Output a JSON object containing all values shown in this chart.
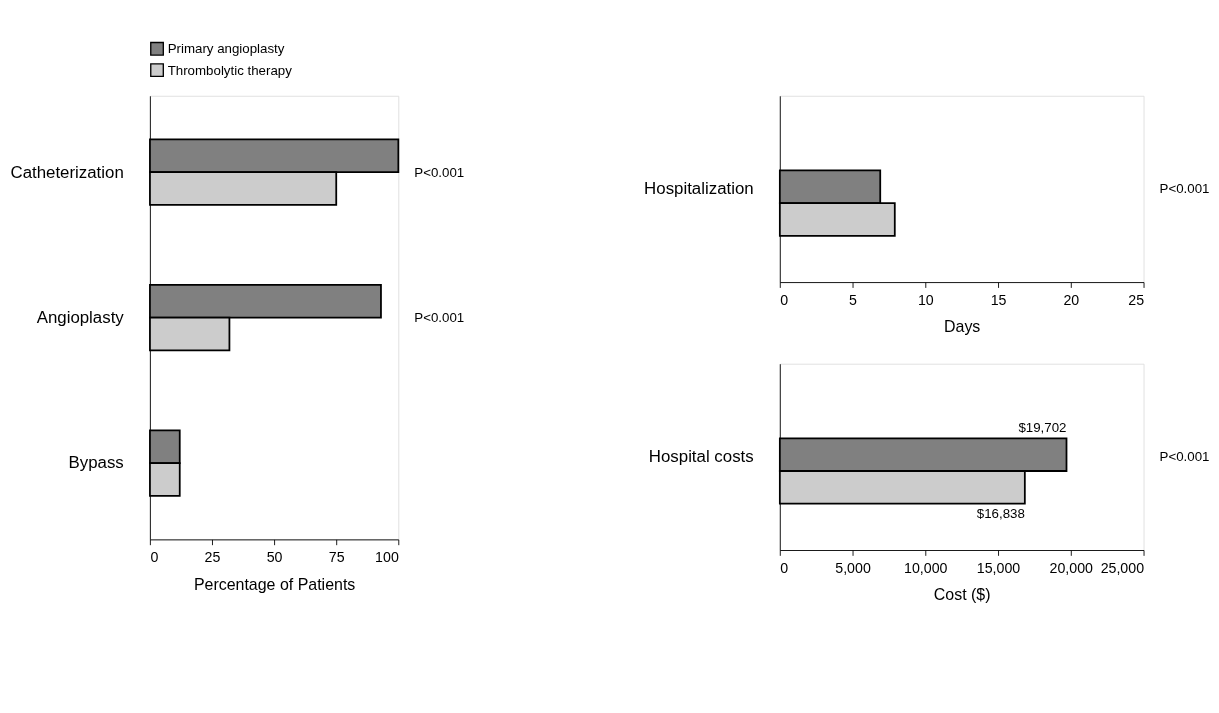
{
  "chart_data": [
    {
      "type": "bar",
      "orientation": "horizontal",
      "categories": [
        "Catheterization",
        "Angioplasty",
        "Bypass"
      ],
      "xlabel": "Percentage of Patients",
      "xlim": [
        0,
        100
      ],
      "xticks": [
        0,
        25,
        50,
        75,
        100
      ],
      "grid": false,
      "legend": "top",
      "series": [
        {
          "name": "Primary angioplasty",
          "color": "#808080",
          "values": [
            100,
            93,
            12
          ]
        },
        {
          "name": "Thrombolytic therapy",
          "color": "#cccccc",
          "values": [
            75,
            32,
            12
          ]
        }
      ],
      "annotations": [
        "P<0.001",
        "P<0.001"
      ]
    },
    {
      "type": "bar",
      "orientation": "horizontal",
      "categories": [
        "Hospitalization"
      ],
      "xlabel": "Days",
      "xlim": [
        0,
        25
      ],
      "xticks": [
        0,
        5,
        10,
        15,
        20,
        25
      ],
      "grid": false,
      "series": [
        {
          "color": "#808080",
          "values": [
            6.9
          ]
        },
        {
          "color": "#cccccc",
          "values": [
            7.9
          ]
        }
      ],
      "annotations": [
        "P<0.001"
      ]
    },
    {
      "type": "bar",
      "orientation": "horizontal",
      "categories": [
        "Hospital costs"
      ],
      "xlabel": "Cost ($)",
      "xlim": [
        0,
        25000
      ],
      "xticks": [
        0,
        {
          "value": 5000,
          "label": "5,000"
        },
        {
          "value": 10000,
          "label": "10,000"
        },
        {
          "value": 15000,
          "label": "15,000"
        },
        {
          "value": 20000,
          "label": "20,000"
        },
        {
          "value": 25000,
          "label": "25,000"
        }
      ],
      "grid": false,
      "series": [
        {
          "color": "#808080",
          "values": [
            19702
          ],
          "value_labels": [
            "$19,702"
          ]
        },
        {
          "color": "#cccccc",
          "values": [
            16838
          ],
          "value_labels": [
            "$16,838"
          ]
        }
      ],
      "annotations": [
        "P<0.001"
      ]
    }
  ]
}
